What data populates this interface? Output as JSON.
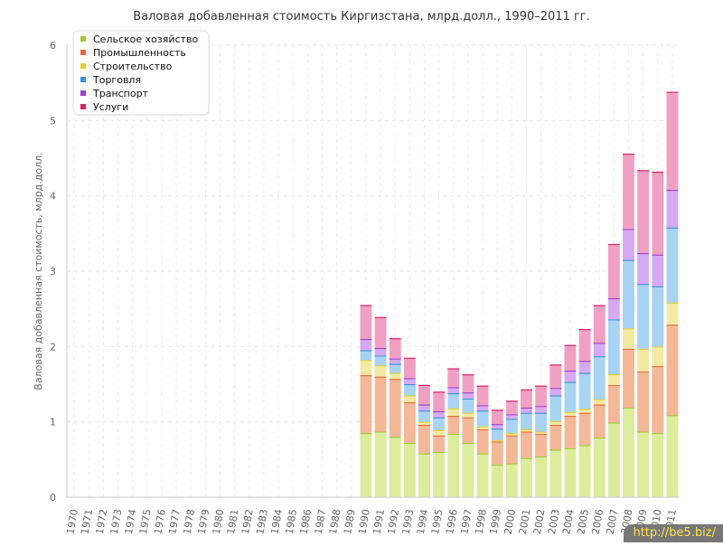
{
  "chart_data": {
    "type": "bar",
    "stacked": true,
    "title": "Валовая добавленная стоимость Киргизстана, млрд.долл., 1990–2011 гг.",
    "xlabel": "",
    "ylabel": "Валовая добавленная стоимость, млрд.долл.",
    "ylim": [
      0,
      6
    ],
    "yticks": [
      "0",
      "1",
      "2",
      "3",
      "4",
      "5",
      "6"
    ],
    "grid": true,
    "legend_position": "top-left",
    "categories": [
      "1970",
      "1971",
      "1972",
      "1973",
      "1974",
      "1975",
      "1976",
      "1977",
      "1978",
      "1979",
      "1980",
      "1981",
      "1982",
      "1983",
      "1984",
      "1985",
      "1986",
      "1987",
      "1988",
      "1989",
      "1990",
      "1991",
      "1992",
      "1993",
      "1994",
      "1995",
      "1996",
      "1997",
      "1998",
      "1999",
      "2000",
      "2001",
      "2002",
      "2003",
      "2004",
      "2005",
      "2006",
      "2007",
      "2008",
      "2009",
      "2010",
      "2011"
    ],
    "series": [
      {
        "name": "Сельское хозяйство",
        "color": "#9acd32",
        "fill": "#dbec9c",
        "values": [
          null,
          null,
          null,
          null,
          null,
          null,
          null,
          null,
          null,
          null,
          null,
          null,
          null,
          null,
          null,
          null,
          null,
          null,
          null,
          null,
          0.85,
          0.87,
          0.8,
          0.72,
          0.58,
          0.6,
          0.84,
          0.72,
          0.58,
          0.43,
          0.45,
          0.52,
          0.54,
          0.63,
          0.65,
          0.69,
          0.79,
          0.99,
          1.19,
          0.87,
          0.85,
          1.09
        ]
      },
      {
        "name": "Промышленность",
        "color": "#e8683c",
        "fill": "#f3b898",
        "values": [
          null,
          null,
          null,
          null,
          null,
          null,
          null,
          null,
          null,
          null,
          null,
          null,
          null,
          null,
          null,
          null,
          null,
          null,
          null,
          null,
          0.77,
          0.73,
          0.77,
          0.54,
          0.38,
          0.22,
          0.24,
          0.34,
          0.32,
          0.31,
          0.37,
          0.35,
          0.3,
          0.33,
          0.43,
          0.43,
          0.44,
          0.5,
          0.78,
          0.8,
          0.89,
          1.2
        ]
      },
      {
        "name": "Строительство",
        "color": "#e5d02b",
        "fill": "#f2eaa2",
        "values": [
          null,
          null,
          null,
          null,
          null,
          null,
          null,
          null,
          null,
          null,
          null,
          null,
          null,
          null,
          null,
          null,
          null,
          null,
          null,
          null,
          0.2,
          0.15,
          0.08,
          0.09,
          0.04,
          0.07,
          0.1,
          0.06,
          0.04,
          0.02,
          0.03,
          0.03,
          0.03,
          0.05,
          0.05,
          0.05,
          0.07,
          0.14,
          0.27,
          0.3,
          0.26,
          0.29
        ]
      },
      {
        "name": "Торговля",
        "color": "#3b8fd9",
        "fill": "#a8d3f2",
        "values": [
          null,
          null,
          null,
          null,
          null,
          null,
          null,
          null,
          null,
          null,
          null,
          null,
          null,
          null,
          null,
          null,
          null,
          null,
          null,
          null,
          0.13,
          0.13,
          0.12,
          0.15,
          0.15,
          0.17,
          0.2,
          0.19,
          0.21,
          0.15,
          0.19,
          0.22,
          0.25,
          0.34,
          0.4,
          0.48,
          0.57,
          0.73,
          0.91,
          0.86,
          0.8,
          1.0
        ]
      },
      {
        "name": "Транспорт",
        "color": "#9b3fd1",
        "fill": "#d6aaf0",
        "values": [
          null,
          null,
          null,
          null,
          null,
          null,
          null,
          null,
          null,
          null,
          null,
          null,
          null,
          null,
          null,
          null,
          null,
          null,
          null,
          null,
          0.15,
          0.1,
          0.07,
          0.08,
          0.08,
          0.08,
          0.08,
          0.08,
          0.07,
          0.06,
          0.06,
          0.07,
          0.09,
          0.1,
          0.15,
          0.16,
          0.18,
          0.28,
          0.41,
          0.41,
          0.42,
          0.5
        ]
      },
      {
        "name": "Услуги",
        "color": "#d6246e",
        "fill": "#f0a0c2",
        "values": [
          null,
          null,
          null,
          null,
          null,
          null,
          null,
          null,
          null,
          null,
          null,
          null,
          null,
          null,
          null,
          null,
          null,
          null,
          null,
          null,
          0.45,
          0.41,
          0.27,
          0.27,
          0.26,
          0.26,
          0.25,
          0.24,
          0.26,
          0.19,
          0.18,
          0.24,
          0.27,
          0.31,
          0.34,
          0.42,
          0.5,
          0.72,
          1.0,
          1.1,
          1.1,
          1.3
        ]
      }
    ]
  },
  "watermark": "http://be5.biz/"
}
